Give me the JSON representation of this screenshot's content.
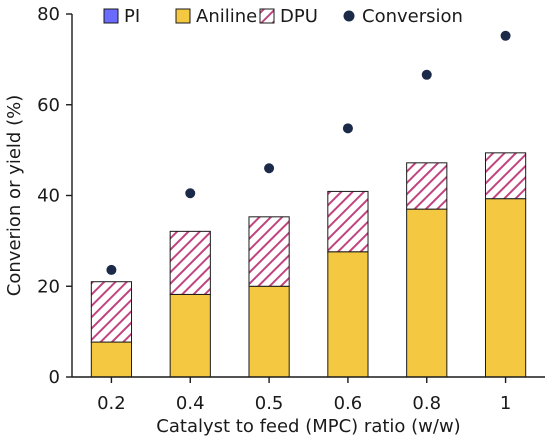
{
  "chart_data": {
    "type": "bar",
    "stacked": true,
    "categories": [
      "0.2",
      "0.4",
      "0.5",
      "0.6",
      "0.8",
      "1"
    ],
    "xlabel": "Catalyst to feed (MPC) ratio (w/w)",
    "ylabel": "Converion or yield (%)",
    "ylim": [
      0,
      80
    ],
    "yticks": [
      "0",
      "20",
      "40",
      "60",
      "80"
    ],
    "grid": false,
    "legend_position": "top",
    "series": [
      {
        "name": "PI",
        "kind": "bar",
        "color": "#6b6bff",
        "pattern": "none",
        "values": [
          0,
          0,
          0,
          0,
          0,
          0
        ]
      },
      {
        "name": "Aniline",
        "kind": "bar",
        "color": "#f5c842",
        "pattern": "none",
        "values": [
          7.7,
          18.2,
          20.0,
          27.6,
          37.0,
          39.3
        ]
      },
      {
        "name": "DPU",
        "kind": "bar",
        "color": "#c0457f",
        "pattern": "hatch",
        "values": [
          13.3,
          13.9,
          15.3,
          13.3,
          10.2,
          10.1
        ]
      },
      {
        "name": "Conversion",
        "kind": "scatter",
        "color": "#1c2a4a",
        "values": [
          23.6,
          40.5,
          46.0,
          54.8,
          66.6,
          75.2
        ]
      }
    ]
  }
}
